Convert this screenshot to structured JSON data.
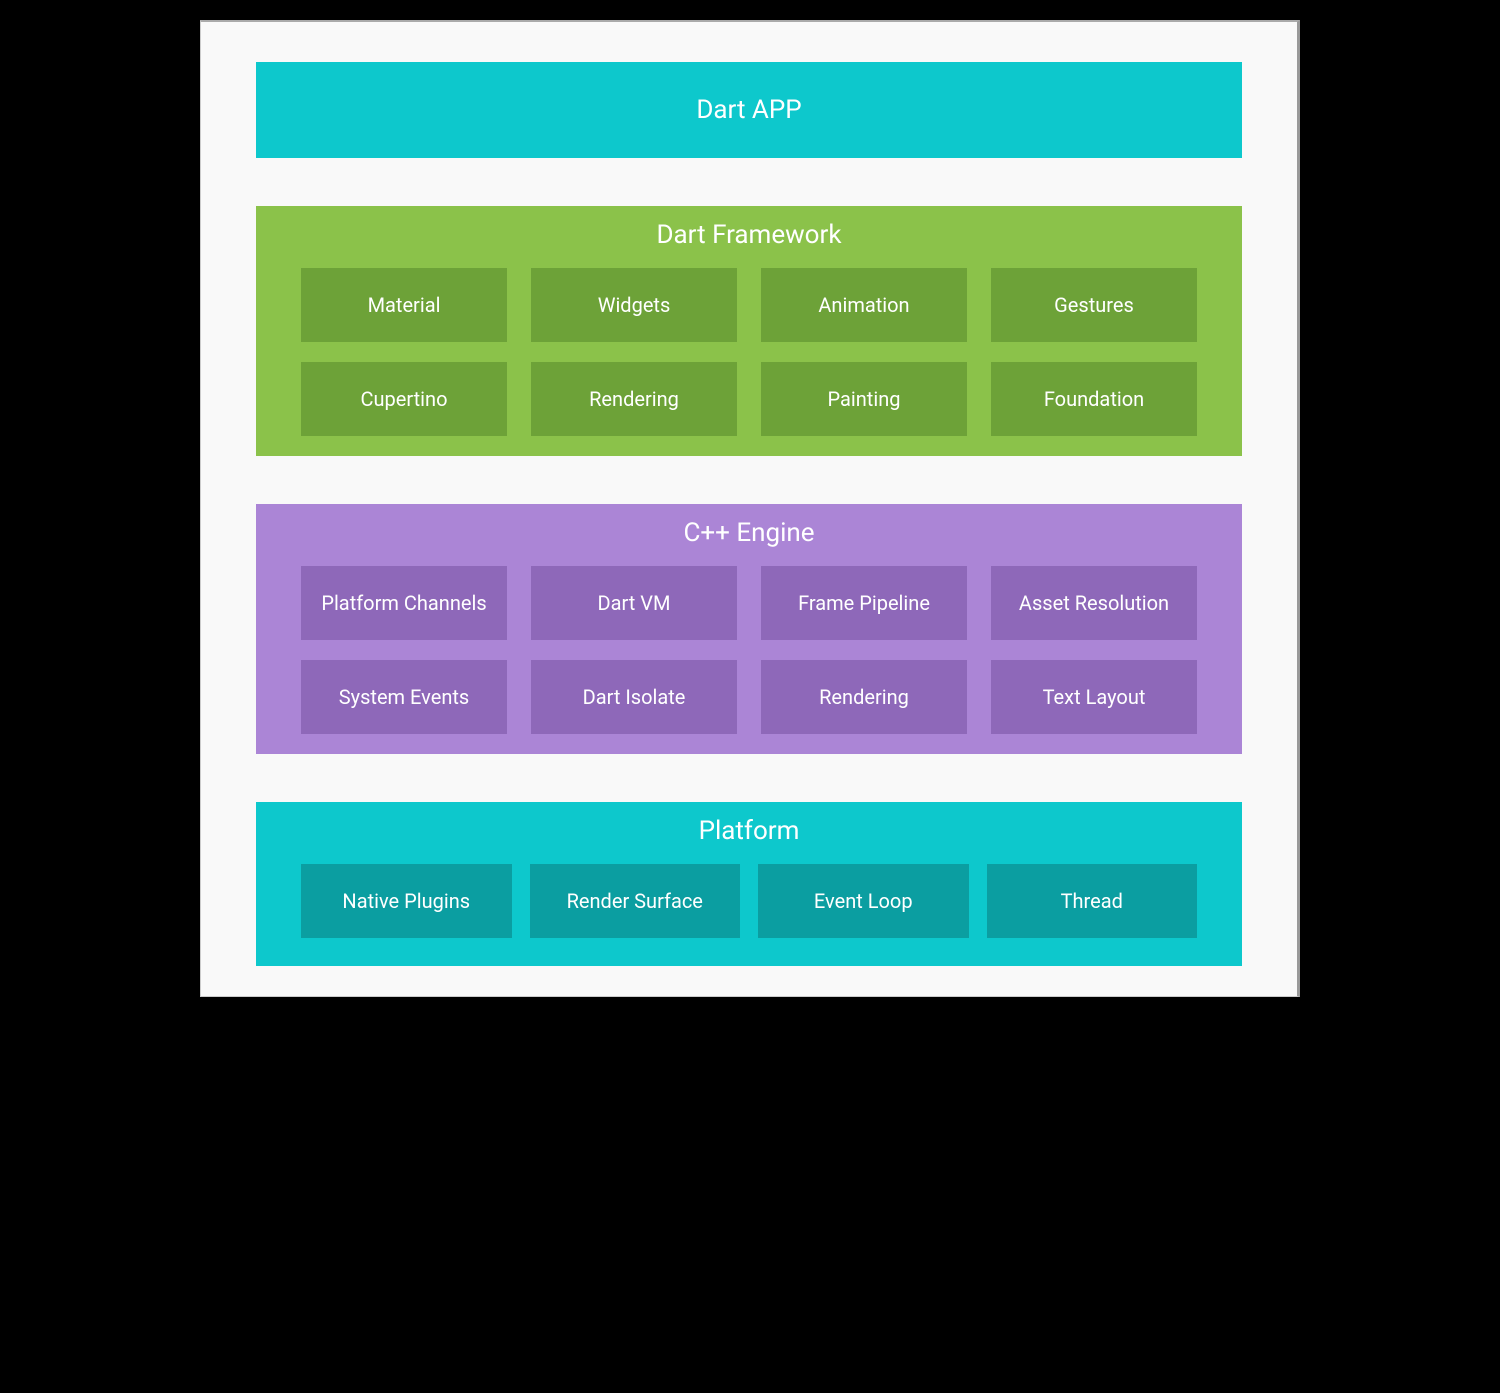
{
  "diagram": {
    "type": "infographic",
    "background_color": "#000000",
    "canvas_color": "#f9f9f9",
    "title_fontsize": 26,
    "cell_fontsize": 20,
    "layers": [
      {
        "id": "dart-app",
        "title": "Dart APP",
        "bg_color": "#0dc8cc",
        "text_color": "#ffffff",
        "items": []
      },
      {
        "id": "dart-framework",
        "title": "Dart Framework",
        "bg_color": "#8bc24a",
        "cell_color": "#6da238",
        "text_color": "#ffffff",
        "items": [
          "Material",
          "Widgets",
          "Animation",
          "Gestures",
          "Cupertino",
          "Rendering",
          "Painting",
          "Foundation"
        ]
      },
      {
        "id": "cpp-engine",
        "title": "C++ Engine",
        "bg_color": "#ab85d6",
        "cell_color": "#8e68b9",
        "text_color": "#ffffff",
        "items": [
          "Platform Channels",
          "Dart VM",
          "Frame Pipeline",
          "Asset Resolution",
          "System Events",
          "Dart Isolate",
          "Rendering",
          "Text Layout"
        ]
      },
      {
        "id": "platform",
        "title": "Platform",
        "bg_color": "#0dc8cc",
        "cell_color": "#0b9ea1",
        "text_color": "#ffffff",
        "items": [
          "Native Plugins",
          "Render Surface",
          "Event Loop",
          "Thread"
        ]
      }
    ]
  }
}
